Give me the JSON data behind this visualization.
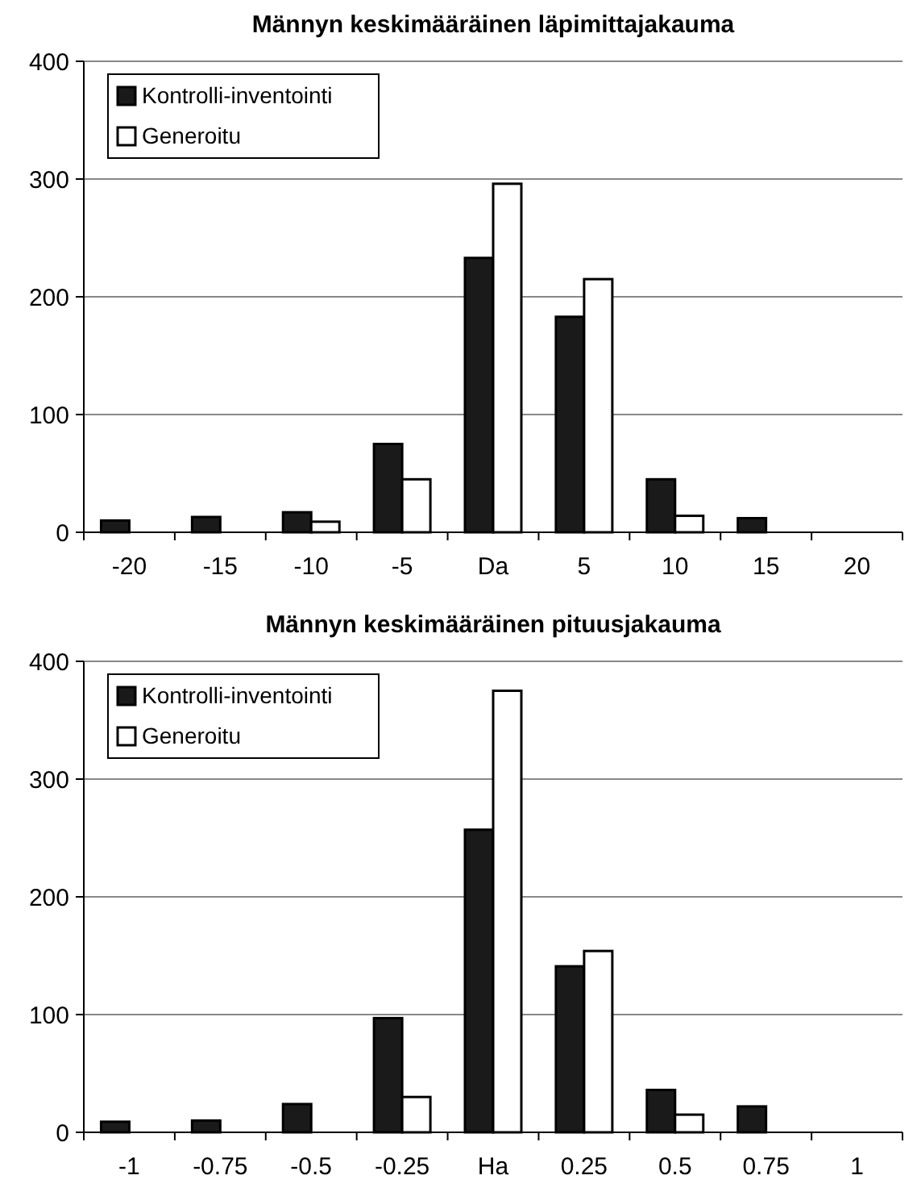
{
  "chart_data": [
    {
      "type": "bar",
      "title": "Männyn keskimääräinen läpimittajakauma",
      "categories": [
        "-20",
        "-15",
        "-10",
        "-5",
        "Da",
        "5",
        "10",
        "15",
        "20"
      ],
      "series": [
        {
          "name": "Kontrolli-inventointi",
          "color": "#1a1a1a",
          "values": [
            10,
            13,
            17,
            75,
            233,
            183,
            45,
            12,
            0
          ]
        },
        {
          "name": "Generoitu",
          "color": "#ffffff",
          "values": [
            0,
            0,
            9,
            45,
            296,
            215,
            14,
            0,
            0
          ]
        }
      ],
      "ylim": [
        0,
        400
      ],
      "yticks": [
        0,
        100,
        200,
        300,
        400
      ],
      "grid": "y",
      "legend": "top left"
    },
    {
      "type": "bar",
      "title": "Männyn keskimääräinen pituusjakauma",
      "categories": [
        "-1",
        "-0.75",
        "-0.5",
        "-0.25",
        "Ha",
        "0.25",
        "0.5",
        "0.75",
        "1"
      ],
      "series": [
        {
          "name": "Kontrolli-inventointi",
          "color": "#1a1a1a",
          "values": [
            9,
            10,
            24,
            97,
            257,
            141,
            36,
            22,
            0
          ]
        },
        {
          "name": "Generoitu",
          "color": "#ffffff",
          "values": [
            0,
            0,
            0,
            30,
            375,
            154,
            15,
            0,
            0
          ]
        }
      ],
      "ylim": [
        0,
        400
      ],
      "yticks": [
        0,
        100,
        200,
        300,
        400
      ],
      "grid": "y",
      "legend": "top left"
    }
  ]
}
